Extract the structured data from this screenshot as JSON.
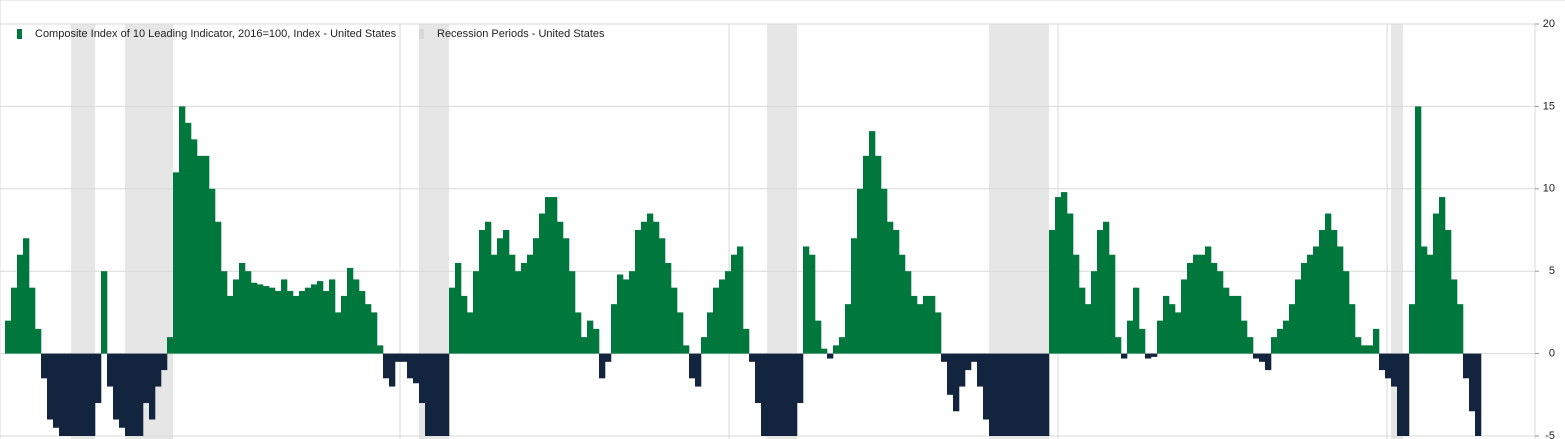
{
  "chart_data": {
    "type": "bar",
    "ylim": [
      -5,
      20
    ],
    "yticks": [
      -5,
      0,
      5,
      10,
      15,
      20
    ],
    "grid": true,
    "legend": "top-left",
    "series": [
      {
        "name": "Composite Index of 10 Leading Indicator, 2016=100, Index - United States",
        "color": "#00773d",
        "negative_color": "#13243f",
        "values": [
          2,
          4,
          6,
          7,
          4,
          1.5,
          -1.5,
          -4,
          -4.5,
          -5,
          -6,
          -6,
          -6,
          -6,
          -6,
          -3,
          5,
          -2,
          -4,
          -4.5,
          -6,
          -6,
          -5,
          -3,
          -4,
          -2,
          -1,
          1,
          11,
          15,
          14,
          13,
          12,
          12,
          10,
          8,
          5,
          3.5,
          4.5,
          5.5,
          5,
          4.3,
          4.2,
          4.1,
          4,
          3.8,
          4.5,
          3.8,
          3.5,
          3.8,
          4,
          4.2,
          4.4,
          3.8,
          4.5,
          2.5,
          3.5,
          5.2,
          4.5,
          3.8,
          3,
          2.5,
          0.5,
          -1.5,
          -2,
          -0.5,
          -0.5,
          -1.5,
          -1.8,
          -3,
          -5,
          -6,
          -6,
          -6,
          4,
          5.5,
          3.5,
          2.5,
          5,
          7.5,
          8,
          6,
          7,
          7.5,
          6,
          5,
          5.5,
          6,
          7,
          8.5,
          9.5,
          9.5,
          8,
          7,
          5,
          2.5,
          1,
          2,
          1.5,
          -1.5,
          -0.5,
          3,
          4.8,
          4.5,
          5,
          7.5,
          8,
          8.5,
          8,
          7,
          5.5,
          4,
          2.5,
          0.5,
          -1.5,
          -2,
          1,
          2.5,
          4,
          4.5,
          5,
          6,
          6.5,
          1.5,
          -0.5,
          -3,
          -5,
          -6,
          -6,
          -6,
          -6,
          -5,
          -3,
          6.5,
          6,
          2,
          0.3,
          -0.3,
          0.5,
          1,
          3,
          7,
          10,
          12,
          13.5,
          12,
          10,
          8,
          7.5,
          6,
          5,
          3.5,
          3,
          3.5,
          3.5,
          2.5,
          -0.5,
          -2.5,
          -3.5,
          -2,
          -1,
          -0.5,
          -2,
          -4,
          -5.5,
          -6,
          -6,
          -6,
          -6,
          -6,
          -6,
          -6,
          -6,
          -6,
          7.5,
          9.5,
          9.8,
          8.5,
          6,
          4,
          3,
          5,
          7.5,
          8,
          6,
          1,
          -0.3,
          2,
          4,
          1.5,
          -0.3,
          -0.2,
          2,
          3.5,
          3,
          2.5,
          4.5,
          5.5,
          6,
          6,
          6.5,
          5.5,
          5,
          4,
          3.5,
          3.5,
          2,
          1,
          -0.3,
          -0.5,
          -1,
          1,
          1.5,
          2,
          3,
          4.5,
          5.5,
          6,
          6.5,
          7.5,
          8.5,
          7.5,
          6.5,
          5,
          3,
          1,
          0.5,
          0.5,
          1.5,
          -1,
          -1.5,
          -2,
          -6,
          -6,
          3,
          15,
          6.5,
          6,
          8.5,
          9.5,
          7.5,
          4.5,
          3,
          -1.5,
          -3.5,
          -5.5
        ]
      }
    ],
    "recessions": {
      "name": "Recession Periods - United States",
      "color": "#e6e6e6",
      "ranges": [
        [
          11,
          14
        ],
        [
          20,
          27
        ],
        [
          69,
          73
        ],
        [
          127,
          131
        ],
        [
          164,
          173
        ],
        [
          231,
          232
        ]
      ]
    }
  }
}
